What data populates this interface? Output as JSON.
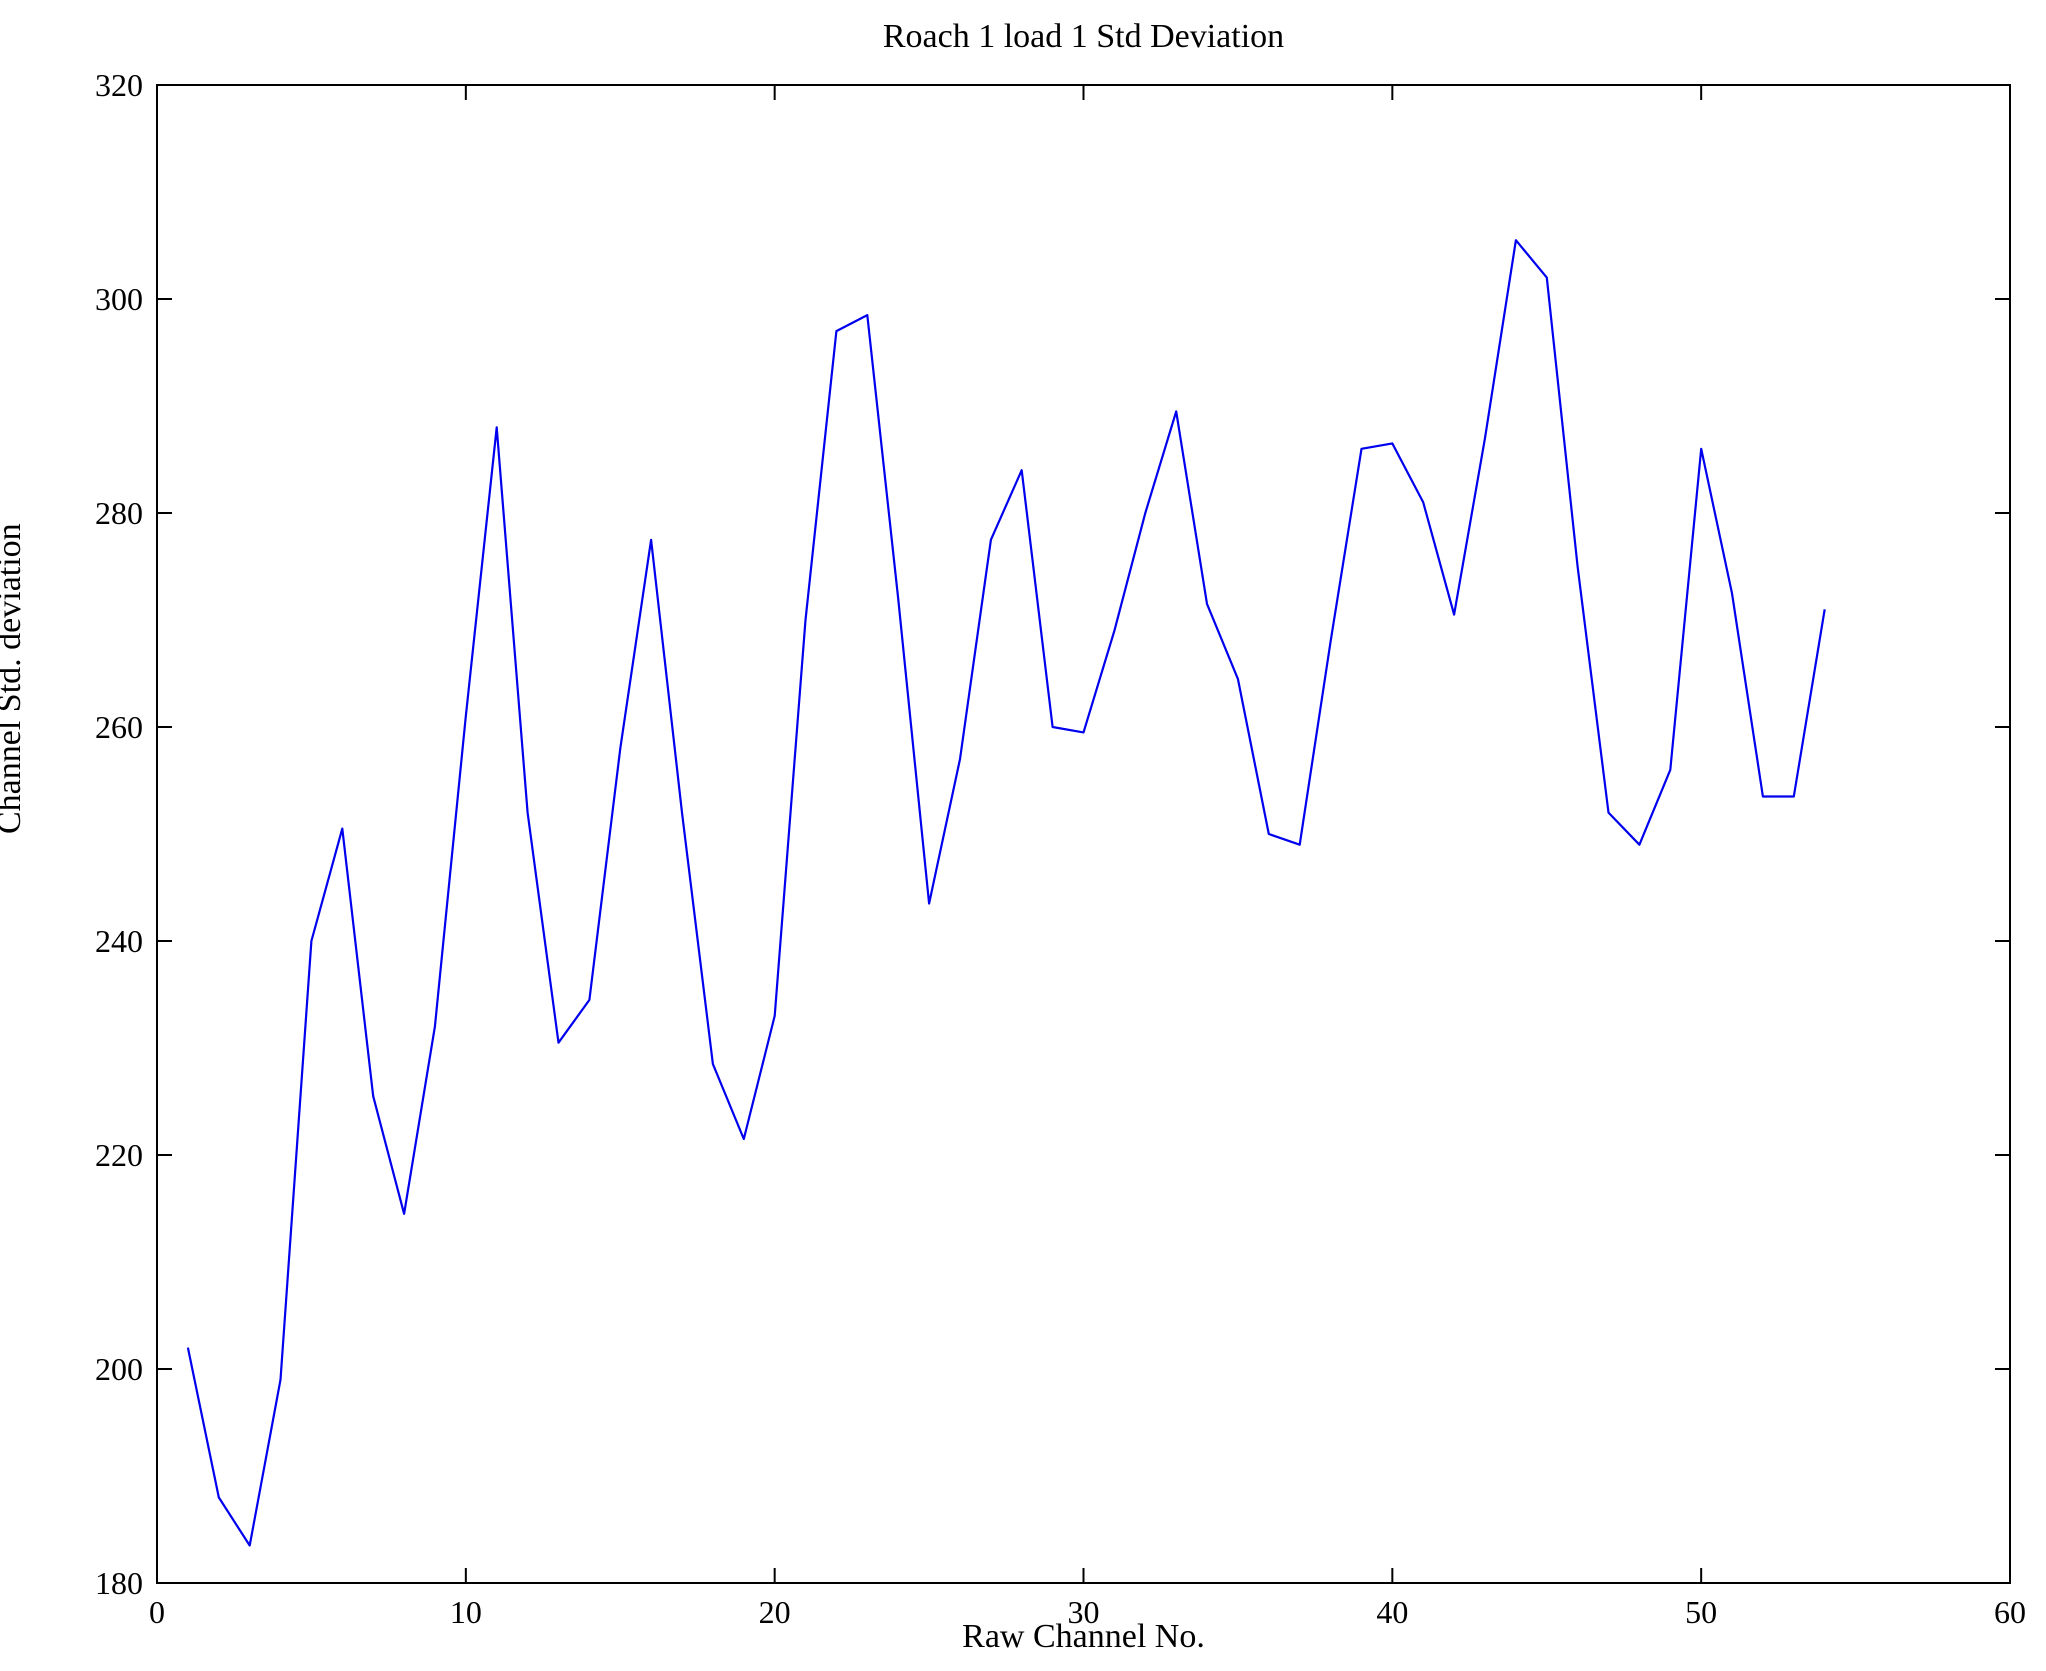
{
  "chart_data": {
    "type": "line",
    "title": "Roach 1 load 1 Std Deviation",
    "xlabel": "Raw Channel No.",
    "ylabel": "Channel Std. deviation",
    "xlim": [
      0,
      60
    ],
    "ylim": [
      180,
      320
    ],
    "xticks": [
      0,
      10,
      20,
      30,
      40,
      50,
      60
    ],
    "yticks": [
      180,
      200,
      220,
      240,
      260,
      280,
      300,
      320
    ],
    "grid": false,
    "legend": "none",
    "line_color": "#0000ee",
    "frame_color": "#000000",
    "x": [
      1,
      2,
      3,
      4,
      5,
      6,
      7,
      8,
      9,
      10,
      11,
      12,
      13,
      14,
      15,
      16,
      17,
      18,
      19,
      20,
      21,
      22,
      23,
      24,
      25,
      26,
      27,
      28,
      29,
      30,
      31,
      32,
      33,
      34,
      35,
      36,
      37,
      38,
      39,
      40,
      41,
      42,
      43,
      44,
      45,
      46,
      47,
      48,
      49,
      50,
      51,
      52,
      53,
      54
    ],
    "y": [
      202,
      188,
      183.5,
      199,
      240,
      250.5,
      225.5,
      214.5,
      232,
      261,
      288,
      252,
      230.5,
      234.5,
      258,
      277.5,
      252,
      228.5,
      221.5,
      233,
      270,
      297,
      298.5,
      272,
      243.5,
      257,
      277.5,
      284,
      260,
      259.5,
      269,
      280,
      289.5,
      271.5,
      264.5,
      250,
      249,
      268,
      286,
      286.5,
      281,
      270.5,
      287,
      305.5,
      302,
      275,
      252,
      249,
      256,
      286,
      272.5,
      253.5,
      253.5,
      271
    ]
  }
}
